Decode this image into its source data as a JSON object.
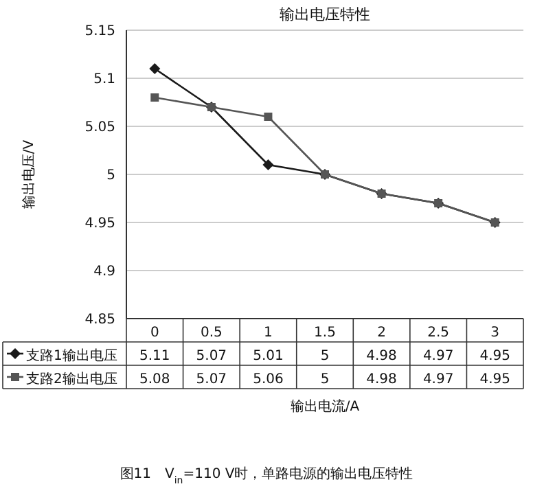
{
  "chart_data": {
    "type": "line",
    "title": "输出电压特性",
    "xlabel": "输出电流/A",
    "ylabel": "输出电压/V",
    "categories": [
      "0",
      "0.5",
      "1",
      "1.5",
      "2",
      "2.5",
      "3"
    ],
    "series": [
      {
        "name": "支路1输出电压",
        "color": "#1a1a1a",
        "marker": "diamond",
        "values": [
          5.11,
          5.07,
          5.01,
          5,
          4.98,
          4.97,
          4.95
        ]
      },
      {
        "name": "支路2输出电压",
        "color": "#555555",
        "marker": "square",
        "values": [
          5.08,
          5.07,
          5.06,
          5,
          4.98,
          4.97,
          4.95
        ]
      }
    ],
    "ylim": [
      4.85,
      5.15
    ],
    "yticks": [
      4.85,
      4.9,
      4.95,
      5,
      5.05,
      5.1,
      5.15
    ],
    "grid": "y",
    "legend": "bottom",
    "data_labels": true,
    "annotations": [
      "图11　V$_{in}$=110 V时，单路电源的输出电压特性"
    ]
  }
}
